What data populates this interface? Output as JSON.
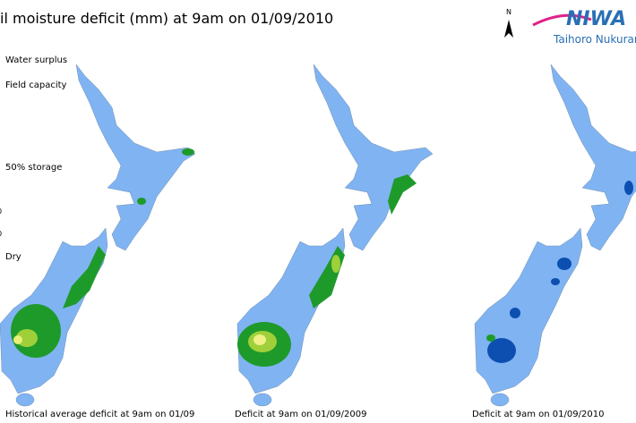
{
  "header": {
    "title": "il moisture deficit (mm) at  9am on 01/09/2010"
  },
  "logo": {
    "north": "N",
    "name": "NIWA",
    "subtitle": "Taihoro Nukurang"
  },
  "legend": {
    "labels": [
      "Water surplus",
      "Field capacity",
      "50% storage",
      "Dry"
    ],
    "ticks": [
      "0",
      "0"
    ]
  },
  "captions": [
    "Historical average deficit at 9am on 01/09",
    "Deficit at  9am on 01/09/2009",
    "Deficit at  9am on 01/09/2010"
  ]
}
